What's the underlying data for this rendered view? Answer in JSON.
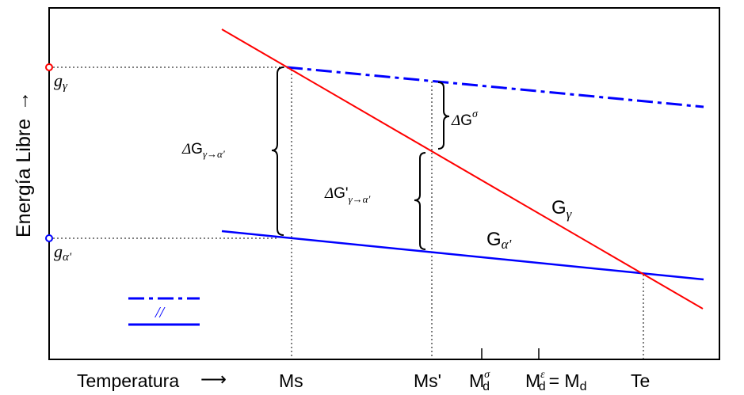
{
  "axes": {
    "y_label": "Energía Libre",
    "y_arrow": "→",
    "x_label": "Temperatura",
    "x_arrow": "⟶"
  },
  "levels": {
    "g_gamma": {
      "base": "g",
      "sub": "γ"
    },
    "g_alpha": {
      "base": "g",
      "sub": "α'"
    }
  },
  "ticks": {
    "ms": "Ms",
    "ms_prime": "Ms'",
    "md_sigma": {
      "base": "M",
      "sup": "σ",
      "sub": "d"
    },
    "md_eps": {
      "base": "M",
      "sup": "ε",
      "sub": "d",
      "eq": "= M",
      "eq_sub": "d"
    },
    "te": "Te"
  },
  "annotations": {
    "dg_total": {
      "delta": "Δ",
      "base": "G",
      "sub": "γ→α'"
    },
    "dg_sigma": {
      "delta": "Δ",
      "base": "G",
      "sup": "σ"
    },
    "dg_prime": {
      "delta": "Δ",
      "base": "G'",
      "sub": "γ→α'"
    },
    "curve_gamma": {
      "base": "G",
      "sub": "γ"
    },
    "curve_alpha": {
      "base": "G",
      "sub": "α'"
    }
  },
  "legend": {
    "mark": "//"
  },
  "colors": {
    "gamma": "#ff0000",
    "alpha": "#0000ff",
    "frame": "#000000"
  }
}
